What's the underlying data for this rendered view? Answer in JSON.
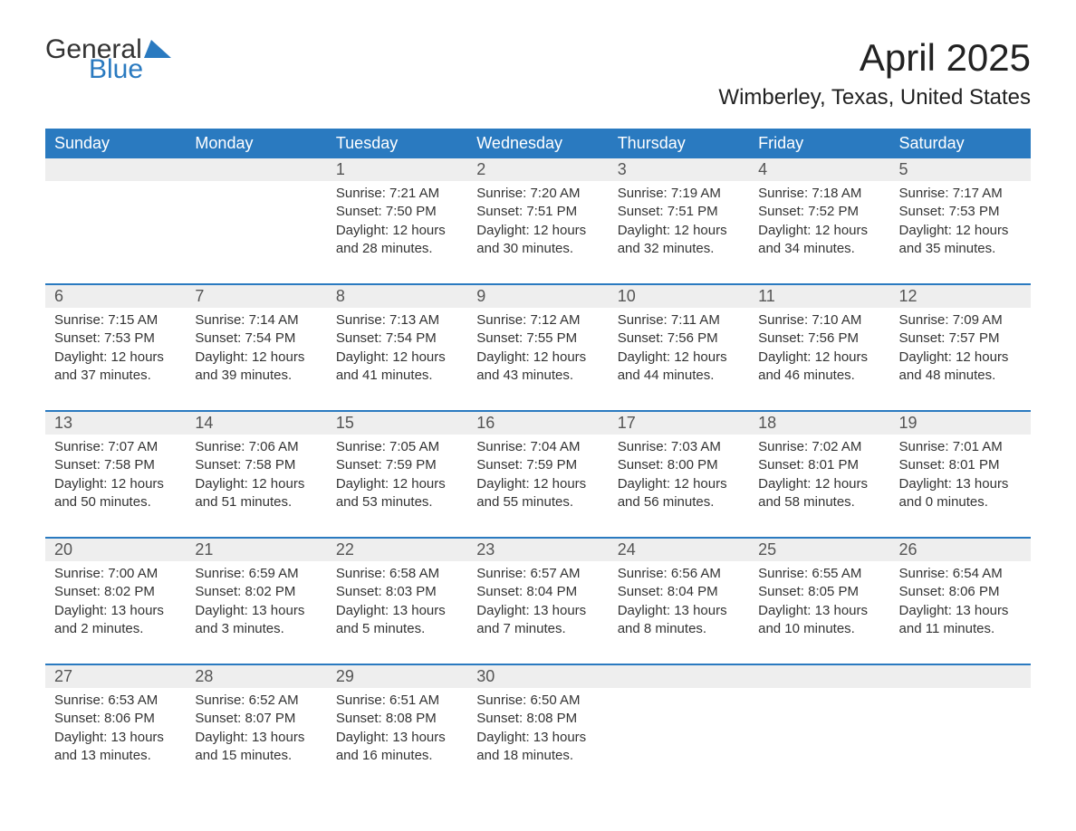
{
  "logo": {
    "text_a": "General",
    "text_b": "Blue",
    "icon_color": "#2a7ac0"
  },
  "header": {
    "month_title": "April 2025",
    "location": "Wimberley, Texas, United States"
  },
  "colors": {
    "header_bg": "#2a7ac0",
    "header_fg": "#ffffff",
    "daynum_bg": "#eeeeee",
    "text": "#333333",
    "page_bg": "#ffffff"
  },
  "typography": {
    "month_title_fontsize": 42,
    "location_fontsize": 24,
    "day_header_fontsize": 18,
    "daynum_fontsize": 18,
    "body_fontsize": 15
  },
  "day_headers": [
    "Sunday",
    "Monday",
    "Tuesday",
    "Wednesday",
    "Thursday",
    "Friday",
    "Saturday"
  ],
  "weeks": [
    [
      null,
      null,
      {
        "n": "1",
        "sunrise": "7:21 AM",
        "sunset": "7:50 PM",
        "dl": "12 hours and 28 minutes."
      },
      {
        "n": "2",
        "sunrise": "7:20 AM",
        "sunset": "7:51 PM",
        "dl": "12 hours and 30 minutes."
      },
      {
        "n": "3",
        "sunrise": "7:19 AM",
        "sunset": "7:51 PM",
        "dl": "12 hours and 32 minutes."
      },
      {
        "n": "4",
        "sunrise": "7:18 AM",
        "sunset": "7:52 PM",
        "dl": "12 hours and 34 minutes."
      },
      {
        "n": "5",
        "sunrise": "7:17 AM",
        "sunset": "7:53 PM",
        "dl": "12 hours and 35 minutes."
      }
    ],
    [
      {
        "n": "6",
        "sunrise": "7:15 AM",
        "sunset": "7:53 PM",
        "dl": "12 hours and 37 minutes."
      },
      {
        "n": "7",
        "sunrise": "7:14 AM",
        "sunset": "7:54 PM",
        "dl": "12 hours and 39 minutes."
      },
      {
        "n": "8",
        "sunrise": "7:13 AM",
        "sunset": "7:54 PM",
        "dl": "12 hours and 41 minutes."
      },
      {
        "n": "9",
        "sunrise": "7:12 AM",
        "sunset": "7:55 PM",
        "dl": "12 hours and 43 minutes."
      },
      {
        "n": "10",
        "sunrise": "7:11 AM",
        "sunset": "7:56 PM",
        "dl": "12 hours and 44 minutes."
      },
      {
        "n": "11",
        "sunrise": "7:10 AM",
        "sunset": "7:56 PM",
        "dl": "12 hours and 46 minutes."
      },
      {
        "n": "12",
        "sunrise": "7:09 AM",
        "sunset": "7:57 PM",
        "dl": "12 hours and 48 minutes."
      }
    ],
    [
      {
        "n": "13",
        "sunrise": "7:07 AM",
        "sunset": "7:58 PM",
        "dl": "12 hours and 50 minutes."
      },
      {
        "n": "14",
        "sunrise": "7:06 AM",
        "sunset": "7:58 PM",
        "dl": "12 hours and 51 minutes."
      },
      {
        "n": "15",
        "sunrise": "7:05 AM",
        "sunset": "7:59 PM",
        "dl": "12 hours and 53 minutes."
      },
      {
        "n": "16",
        "sunrise": "7:04 AM",
        "sunset": "7:59 PM",
        "dl": "12 hours and 55 minutes."
      },
      {
        "n": "17",
        "sunrise": "7:03 AM",
        "sunset": "8:00 PM",
        "dl": "12 hours and 56 minutes."
      },
      {
        "n": "18",
        "sunrise": "7:02 AM",
        "sunset": "8:01 PM",
        "dl": "12 hours and 58 minutes."
      },
      {
        "n": "19",
        "sunrise": "7:01 AM",
        "sunset": "8:01 PM",
        "dl": "13 hours and 0 minutes."
      }
    ],
    [
      {
        "n": "20",
        "sunrise": "7:00 AM",
        "sunset": "8:02 PM",
        "dl": "13 hours and 2 minutes."
      },
      {
        "n": "21",
        "sunrise": "6:59 AM",
        "sunset": "8:02 PM",
        "dl": "13 hours and 3 minutes."
      },
      {
        "n": "22",
        "sunrise": "6:58 AM",
        "sunset": "8:03 PM",
        "dl": "13 hours and 5 minutes."
      },
      {
        "n": "23",
        "sunrise": "6:57 AM",
        "sunset": "8:04 PM",
        "dl": "13 hours and 7 minutes."
      },
      {
        "n": "24",
        "sunrise": "6:56 AM",
        "sunset": "8:04 PM",
        "dl": "13 hours and 8 minutes."
      },
      {
        "n": "25",
        "sunrise": "6:55 AM",
        "sunset": "8:05 PM",
        "dl": "13 hours and 10 minutes."
      },
      {
        "n": "26",
        "sunrise": "6:54 AM",
        "sunset": "8:06 PM",
        "dl": "13 hours and 11 minutes."
      }
    ],
    [
      {
        "n": "27",
        "sunrise": "6:53 AM",
        "sunset": "8:06 PM",
        "dl": "13 hours and 13 minutes."
      },
      {
        "n": "28",
        "sunrise": "6:52 AM",
        "sunset": "8:07 PM",
        "dl": "13 hours and 15 minutes."
      },
      {
        "n": "29",
        "sunrise": "6:51 AM",
        "sunset": "8:08 PM",
        "dl": "13 hours and 16 minutes."
      },
      {
        "n": "30",
        "sunrise": "6:50 AM",
        "sunset": "8:08 PM",
        "dl": "13 hours and 18 minutes."
      },
      null,
      null,
      null
    ]
  ],
  "labels": {
    "sunrise_prefix": "Sunrise: ",
    "sunset_prefix": "Sunset: ",
    "daylight_prefix": "Daylight: "
  }
}
